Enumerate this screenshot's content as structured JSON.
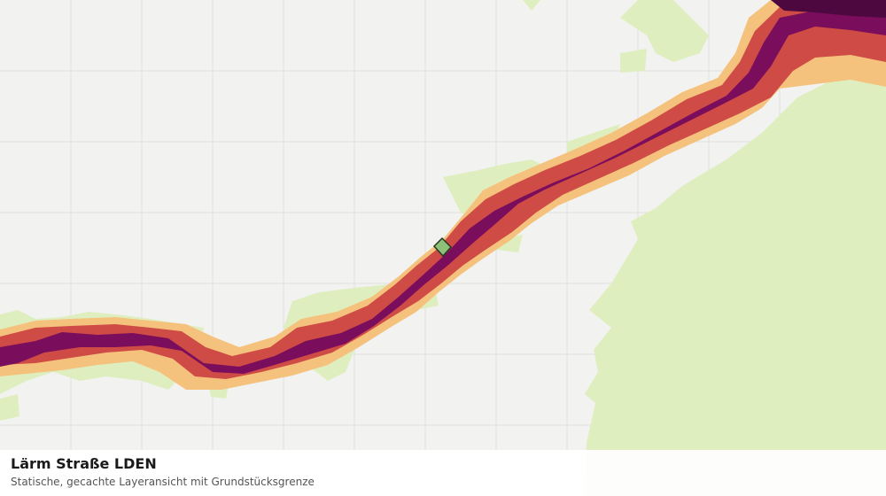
{
  "caption": {
    "title": "Lärm Straße LDEN",
    "subtitle": "Statische, gecachte Layeransicht mit Grundstücksgrenze"
  },
  "colors": {
    "background": "#f2f2f0",
    "grid": "#e0e0de",
    "green_area": "#dfeebf",
    "noise_low": "#f5c27d",
    "noise_mid": "#cf4b45",
    "noise_high": "#7a0d5c",
    "noise_max": "#4e0840",
    "parcel_fill": "#8fc07a",
    "parcel_stroke": "#1e3a1e"
  },
  "legend_layers": [
    "noise-low",
    "noise-mid",
    "noise-high",
    "noise-max"
  ]
}
